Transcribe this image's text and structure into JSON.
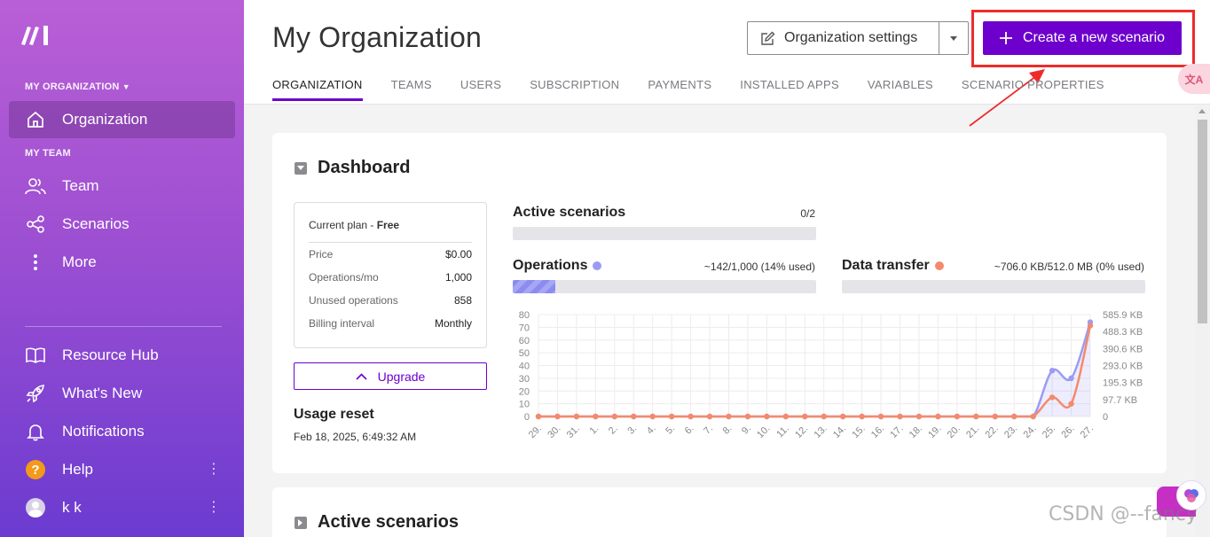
{
  "sidebar": {
    "org_section": "MY ORGANIZATION",
    "team_section": "MY TEAM",
    "items": {
      "organization": "Organization",
      "team": "Team",
      "scenarios": "Scenarios",
      "more": "More",
      "resource_hub": "Resource Hub",
      "whats_new": "What's New",
      "notifications": "Notifications",
      "help": "Help",
      "user": "k k"
    }
  },
  "header": {
    "title": "My Organization",
    "org_settings_label": "Organization settings",
    "create_label": "Create a new scenario",
    "tabs": [
      "ORGANIZATION",
      "TEAMS",
      "USERS",
      "SUBSCRIPTION",
      "PAYMENTS",
      "INSTALLED APPS",
      "VARIABLES",
      "SCENARIO PROPERTIES"
    ],
    "side_pill": "文A"
  },
  "dashboard": {
    "title": "Dashboard",
    "plan": {
      "label": "Current plan - ",
      "name": "Free",
      "rows": [
        {
          "k": "Price",
          "v": "$0.00"
        },
        {
          "k": "Operations/mo",
          "v": "1,000"
        },
        {
          "k": "Unused operations",
          "v": "858"
        },
        {
          "k": "Billing interval",
          "v": "Monthly"
        }
      ]
    },
    "upgrade_label": "Upgrade",
    "usage_reset_title": "Usage reset",
    "usage_reset_date": "Feb 18, 2025, 6:49:32 AM",
    "active_scenarios": {
      "label": "Active scenarios",
      "value": "0/2",
      "fraction": 0
    },
    "operations": {
      "label": "Operations",
      "value": "~142/1,000 (14% used)",
      "fraction": 0.14,
      "color": "#9b9bf4"
    },
    "data_transfer": {
      "label": "Data transfer",
      "value": "~706.0 KB/512.0 MB (0% used)",
      "fraction": 0,
      "color": "#f48a6c"
    }
  },
  "chart_data": {
    "type": "line",
    "categories": [
      "29.",
      "30.",
      "31.",
      "1.",
      "2.",
      "3.",
      "4.",
      "5.",
      "6.",
      "7.",
      "8.",
      "9.",
      "10.",
      "11.",
      "12.",
      "13.",
      "14.",
      "15.",
      "16.",
      "17.",
      "18.",
      "19.",
      "20.",
      "21.",
      "22.",
      "23.",
      "24.",
      "25.",
      "26.",
      "27."
    ],
    "y_ticks": [
      "0",
      "10",
      "20",
      "30",
      "40",
      "50",
      "60",
      "70",
      "80"
    ],
    "y2_ticks": [
      "0",
      "97.7 KB",
      "195.3 KB",
      "293.0 KB",
      "390.6 KB",
      "488.3 KB",
      "585.9 KB"
    ],
    "ylim": [
      0,
      80
    ],
    "y2lim": [
      0,
      585.9
    ],
    "series": [
      {
        "axis": "left",
        "color": "#9b9bf4",
        "values": [
          0,
          0,
          0,
          0,
          0,
          0,
          0,
          0,
          0,
          0,
          0,
          0,
          0,
          0,
          0,
          0,
          0,
          0,
          0,
          0,
          0,
          0,
          0,
          0,
          0,
          0,
          0,
          36,
          30,
          74
        ]
      },
      {
        "axis": "right",
        "color": "#f48a6c",
        "values": [
          0,
          0,
          0,
          0,
          0,
          0,
          0,
          0,
          0,
          0,
          0,
          0,
          0,
          0,
          0,
          0,
          0,
          0,
          0,
          0,
          0,
          0,
          0,
          0,
          0,
          0,
          0,
          110,
          73,
          522
        ]
      }
    ],
    "grid": true
  },
  "active_scenarios_section": {
    "title": "Active scenarios"
  },
  "watermark": "CSDN @--fancy"
}
